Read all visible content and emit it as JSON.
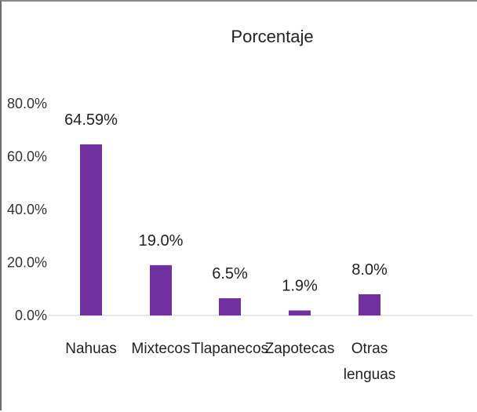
{
  "chart_data": {
    "type": "bar",
    "title": "Porcentaje",
    "categories": [
      [
        "Nahuas"
      ],
      [
        "Mixtecos"
      ],
      [
        "Tlapanecos"
      ],
      [
        "Zapotecas"
      ],
      [
        "Otras",
        "lenguas"
      ]
    ],
    "values": [
      64.59,
      19.0,
      6.5,
      1.9,
      8.0
    ],
    "data_labels": [
      "64.59%",
      "19.0%",
      "6.5%",
      "1.9%",
      "8.0%"
    ],
    "yticks": [
      0,
      20,
      40,
      60,
      80
    ],
    "ytick_labels": [
      "0.0%",
      "20.0%",
      "40.0%",
      "60.0%",
      "80.0%"
    ],
    "ylim": [
      0,
      80
    ],
    "bar_color": "#7030a0",
    "grid": false,
    "legend": "none"
  }
}
